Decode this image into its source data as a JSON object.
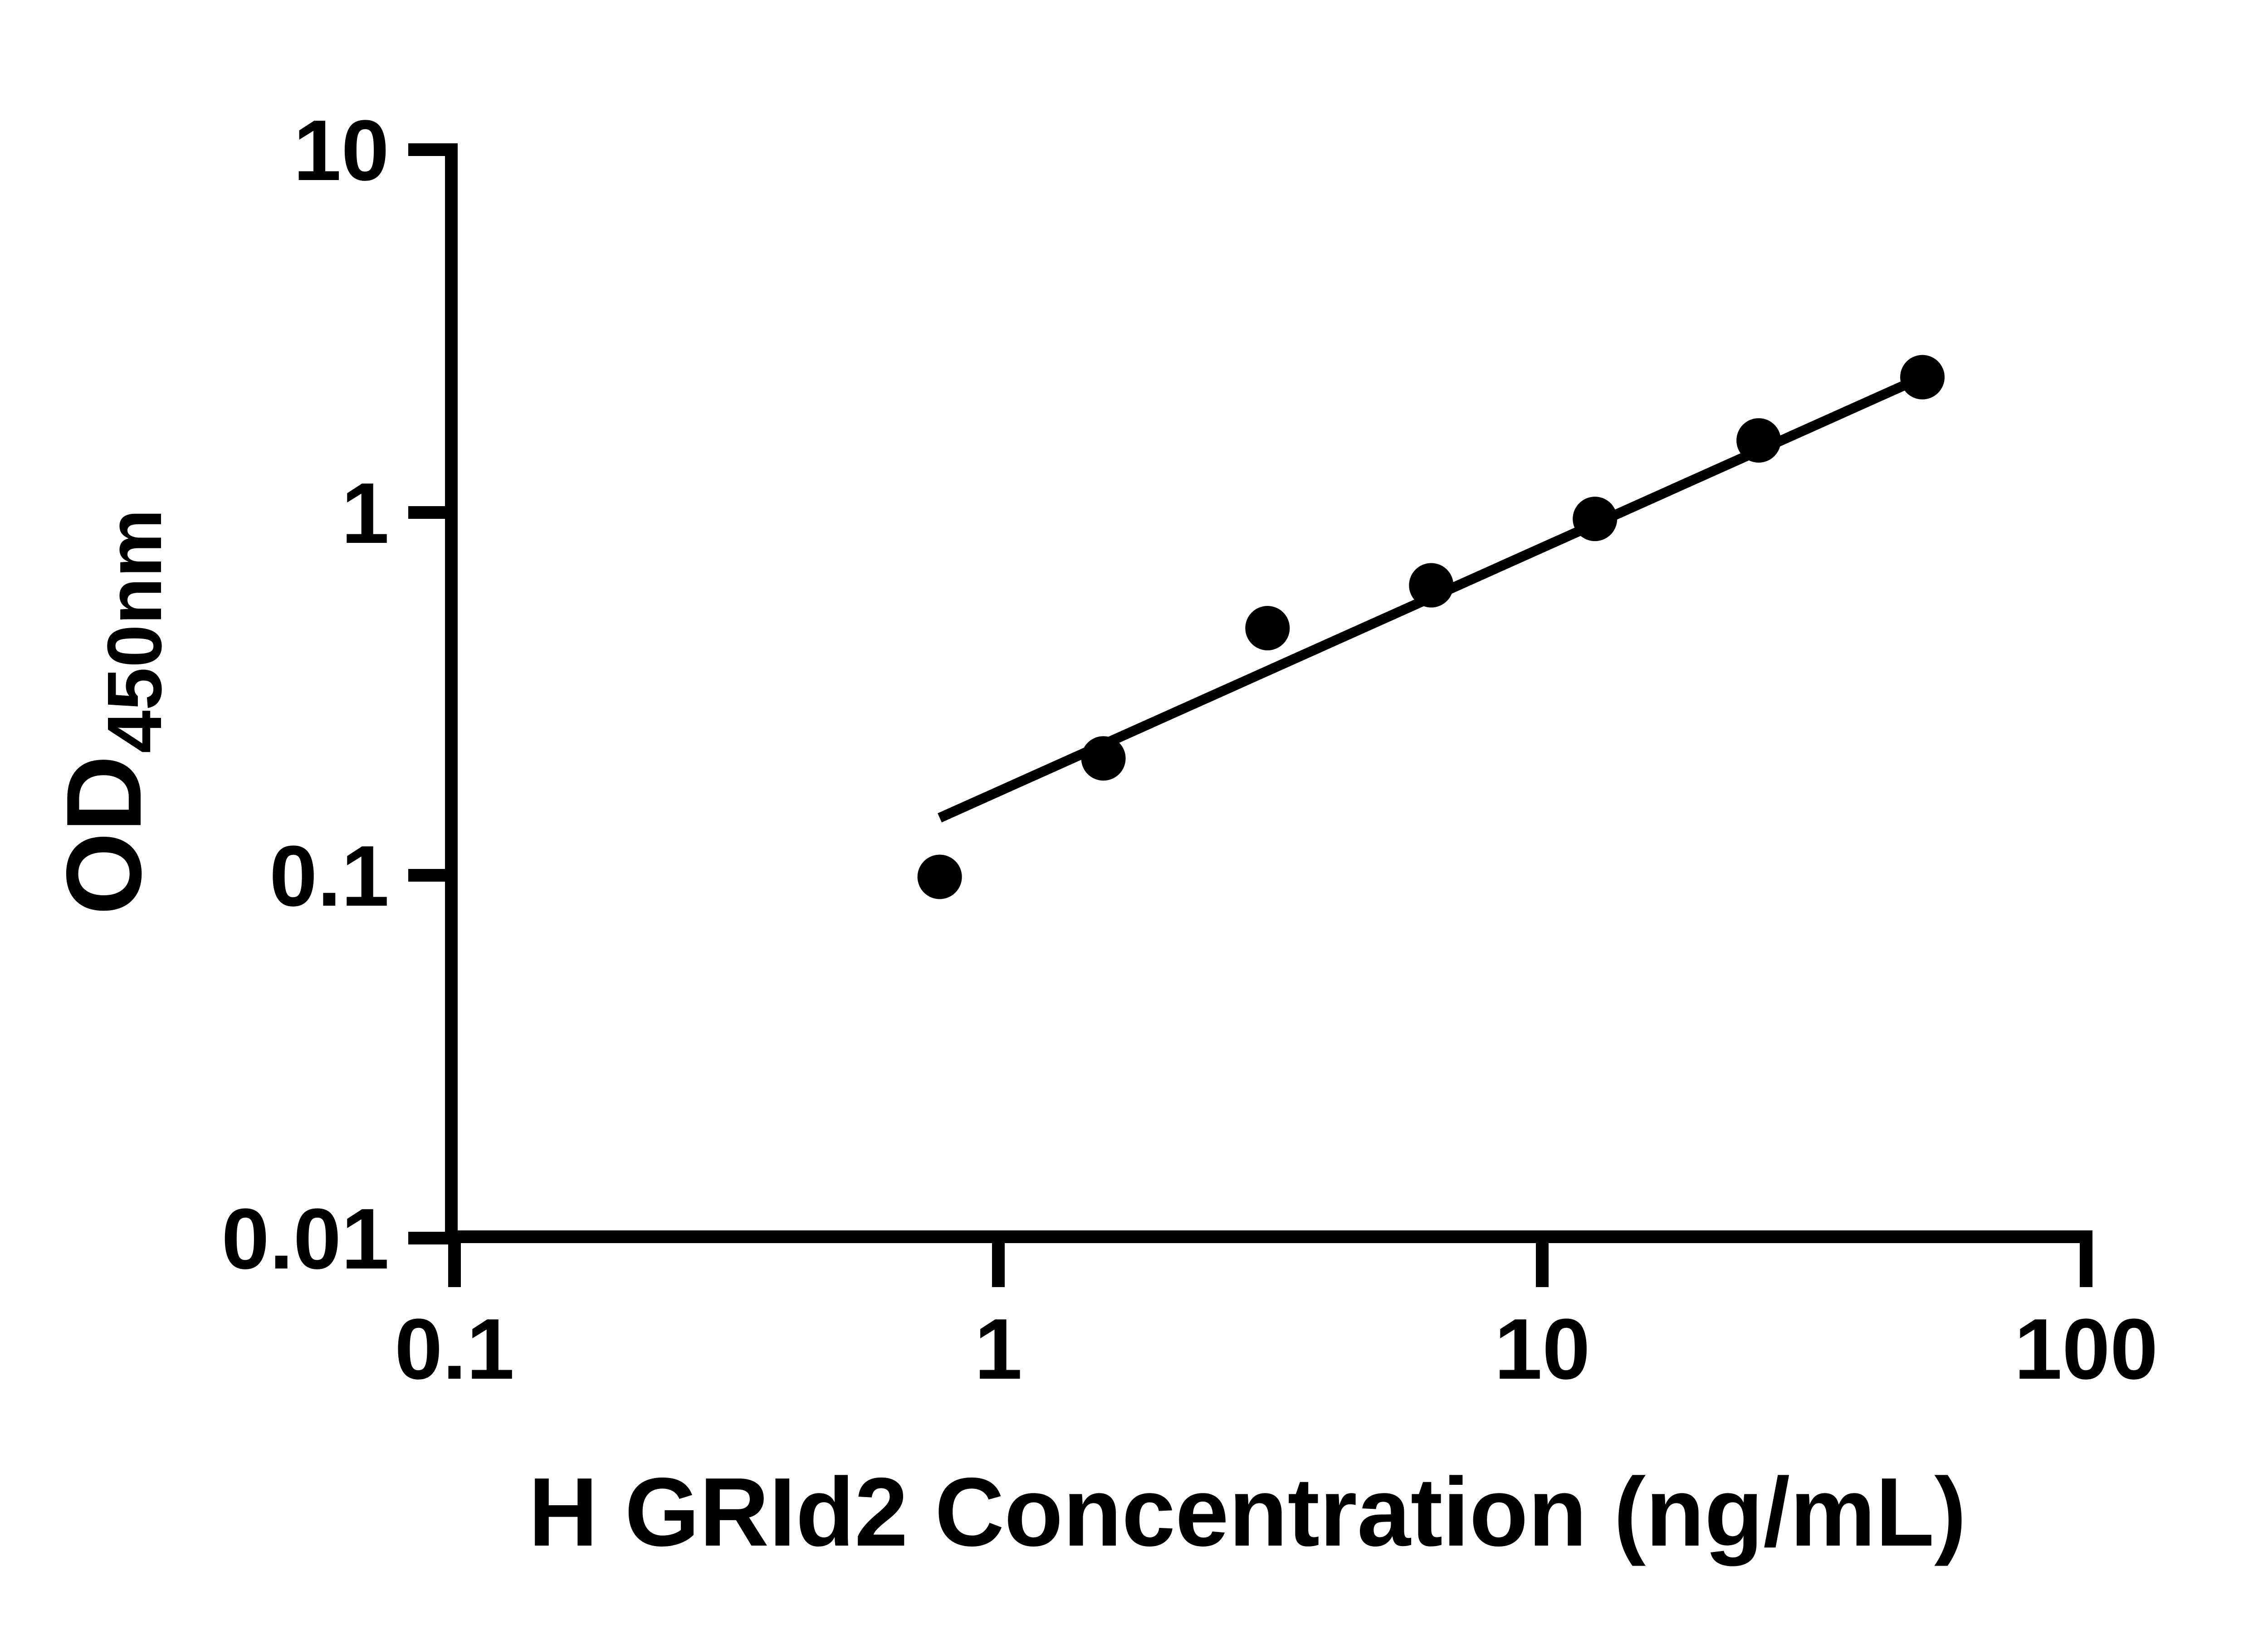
{
  "figure": {
    "background_color": "#ffffff",
    "ink_color": "#000000",
    "description": "ELISA standard curve, log-log scatter plot with linear fit line"
  },
  "chart_data": {
    "type": "scatter",
    "title": "",
    "xlabel": "H GRId2 Concentration (ng/mL)",
    "ylabel_main": "OD",
    "ylabel_subscript": "450nm",
    "x_scale": "log10",
    "y_scale": "log10",
    "xlim": [
      0.1,
      100
    ],
    "ylim": [
      0.01,
      10
    ],
    "grid": false,
    "legend": null,
    "x_ticks": [
      {
        "value": 0.1,
        "label": "0.1"
      },
      {
        "value": 1,
        "label": "1"
      },
      {
        "value": 10,
        "label": "10"
      },
      {
        "value": 100,
        "label": "100"
      }
    ],
    "y_ticks": [
      {
        "value": 10,
        "label": "10"
      },
      {
        "value": 1,
        "label": "1"
      },
      {
        "value": 0.1,
        "label": "0.1"
      },
      {
        "value": 0.01,
        "label": "0.01"
      }
    ],
    "series": [
      {
        "name": "standard-curve-points",
        "marker": "filled-circle",
        "color": "#000000",
        "points": [
          {
            "x": 0.78,
            "y": 0.099
          },
          {
            "x": 1.56,
            "y": 0.21
          },
          {
            "x": 3.125,
            "y": 0.48
          },
          {
            "x": 6.25,
            "y": 0.63
          },
          {
            "x": 12.5,
            "y": 0.96
          },
          {
            "x": 25,
            "y": 1.58
          },
          {
            "x": 50,
            "y": 2.36
          }
        ]
      }
    ],
    "trend_line": {
      "x1": 0.78,
      "y1": 0.144,
      "x2": 50,
      "y2": 2.36
    }
  }
}
